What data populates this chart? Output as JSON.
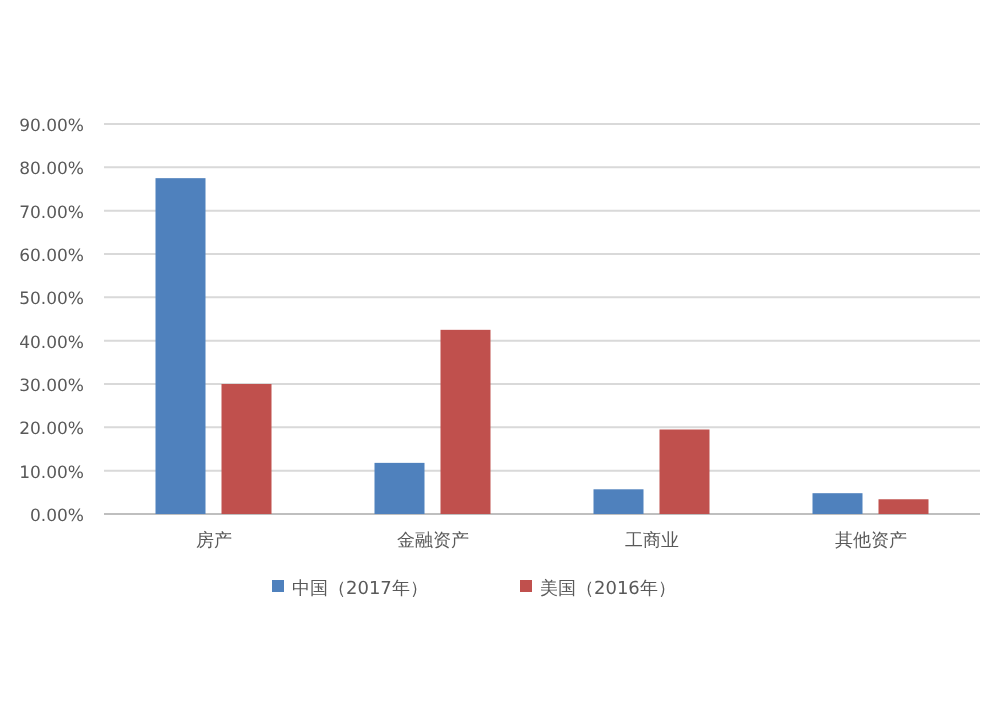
{
  "chart_data": {
    "type": "bar",
    "categories": [
      "房产",
      "金融资产",
      "工商业",
      "其他资产"
    ],
    "series": [
      {
        "name": "中国（2017年）",
        "color": "#4f81bd",
        "values": [
          77.5,
          11.8,
          5.7,
          4.8
        ]
      },
      {
        "name": "美国（2016年）",
        "color": "#c0504d",
        "values": [
          30,
          42.5,
          19.5,
          3.4
        ]
      }
    ],
    "ylim": [
      0,
      90
    ],
    "yticks": [
      {
        "value": 0,
        "label": "0.00%"
      },
      {
        "value": 10,
        "label": "10.00%"
      },
      {
        "value": 20,
        "label": "20.00%"
      },
      {
        "value": 30,
        "label": "30.00%"
      },
      {
        "value": 40,
        "label": "40.00%"
      },
      {
        "value": 50,
        "label": "50.00%"
      },
      {
        "value": 60,
        "label": "60.00%"
      },
      {
        "value": 70,
        "label": "70.00%"
      },
      {
        "value": 80,
        "label": "80.00%"
      },
      {
        "value": 90,
        "label": "90.00%"
      }
    ],
    "grid": "y",
    "legend": "bottom"
  }
}
